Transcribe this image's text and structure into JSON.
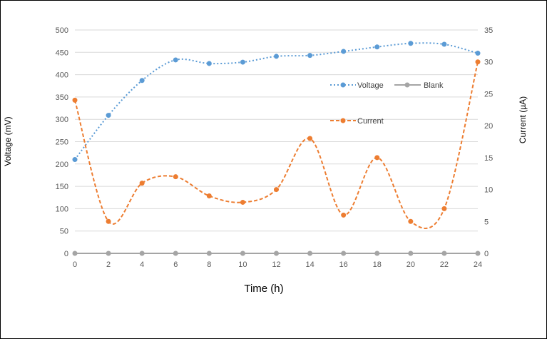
{
  "chart_data": {
    "type": "line",
    "title": "",
    "xlabel": "Time (h)",
    "ylabel_left": "Voltage (mV)",
    "ylabel_right": "Current (µA)",
    "x": [
      0,
      2,
      4,
      6,
      8,
      10,
      12,
      14,
      16,
      18,
      20,
      22,
      24
    ],
    "x_ticks": [
      "0",
      "2",
      "4",
      "6",
      "8",
      "10",
      "12",
      "14",
      "16",
      "18",
      "20",
      "22",
      "24"
    ],
    "ylim_left": [
      0,
      500
    ],
    "ylim_right": [
      0,
      35
    ],
    "y_ticks_left": [
      "0",
      "50",
      "100",
      "150",
      "200",
      "250",
      "300",
      "350",
      "400",
      "450",
      "500"
    ],
    "y_ticks_right": [
      "0",
      "5",
      "10",
      "15",
      "20",
      "25",
      "30",
      "35"
    ],
    "grid": "horizontal",
    "legend_position": "right, inside plot",
    "series": [
      {
        "name": "Voltage",
        "axis": "left",
        "style": "dotted",
        "color": "#5b9bd5",
        "values": [
          210,
          309,
          387,
          433,
          425,
          428,
          441,
          443,
          452,
          462,
          470,
          468,
          448
        ]
      },
      {
        "name": "Blank",
        "axis": "left",
        "style": "solid",
        "color": "#a5a5a5",
        "values": [
          0,
          0,
          0,
          0,
          0,
          0,
          0,
          0,
          0,
          0,
          0,
          0,
          0
        ]
      },
      {
        "name": "Current",
        "axis": "right",
        "style": "dashed",
        "color": "#ed7d31",
        "values": [
          24,
          5,
          11,
          12,
          9,
          8,
          10,
          18,
          6,
          15,
          5,
          7,
          30
        ]
      }
    ]
  }
}
